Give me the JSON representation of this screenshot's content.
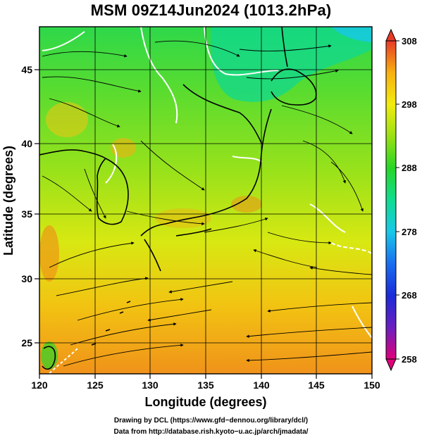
{
  "title": "MSM 09Z14Jun2024 (1013.2hPa)",
  "map": {
    "region": "East Asia (Japan, Korea, eastern China)",
    "x_label": "Longitude (degrees)",
    "y_label": "Latitude  (degrees)",
    "x_ticks": [
      "120",
      "125",
      "130",
      "135",
      "140",
      "145",
      "150"
    ],
    "y_ticks": [
      "25",
      "30",
      "35",
      "40",
      "45"
    ],
    "x_range": [
      120,
      150
    ],
    "y_range": [
      22.4,
      47.6
    ],
    "grid": true,
    "field": "surface air temperature (K) with wind streamlines",
    "colorbar": {
      "labels": [
        "308",
        "298",
        "288",
        "278",
        "268",
        "258"
      ],
      "range": [
        258,
        308
      ],
      "colors": [
        "#e0007a",
        "#6a1fc0",
        "#1a2cd8",
        "#1a6ef0",
        "#18c8e8",
        "#10dc90",
        "#28d628",
        "#9ae012",
        "#f2ec10",
        "#f8b010",
        "#f07018",
        "#e83a28"
      ]
    }
  },
  "footer": {
    "line1": "Drawing by DCL (https://www.gfd−dennou.org/library/dcl/)",
    "line2": "Data from http://database.rish.kyoto−u.ac.jp/arch/jmadata/"
  }
}
